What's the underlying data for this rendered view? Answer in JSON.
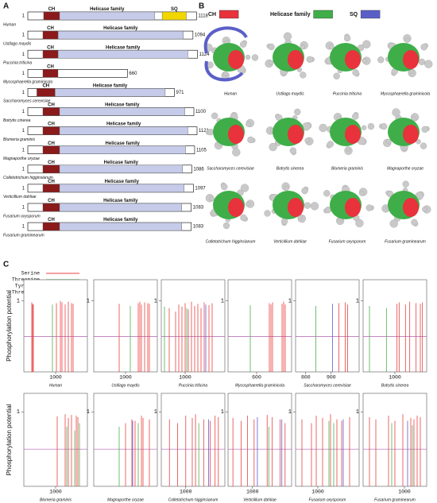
{
  "panel_a": {
    "label": "A",
    "start": 1,
    "ch_label": "CH",
    "helicase_label": "Helicase family",
    "sq_label": "SQ",
    "colors": {
      "ch": "#8b1a1a",
      "helicase": "#c5cbe8",
      "sq": "#f2d600"
    },
    "proteins": [
      {
        "species": "Human",
        "length": 1118,
        "ch": [
          105,
          210
        ],
        "helicase": [
          210,
          840
        ],
        "sq": [
          890,
          1050
        ]
      },
      {
        "species": "Ustilago maydis",
        "length": 1094,
        "ch": [
          100,
          200
        ],
        "helicase": [
          200,
          1030
        ]
      },
      {
        "species": "Puccinia triticina",
        "length": 1124,
        "ch": [
          100,
          200
        ],
        "helicase": [
          200,
          1060
        ]
      },
      {
        "species": "Mycosphaerella graminicola",
        "length": 660,
        "ch": [
          100,
          200
        ]
      },
      {
        "species": "Saccharomyces cerevisiae",
        "length": 971,
        "ch": [
          60,
          180
        ],
        "helicase": [
          180,
          910
        ]
      },
      {
        "species": "Botrytis cinerea",
        "length": 1100,
        "ch": [
          100,
          210
        ],
        "helicase": [
          210,
          1040
        ]
      },
      {
        "species": "Blumeria graminis",
        "length": 1121,
        "ch": [
          100,
          210
        ],
        "helicase": [
          210,
          1060
        ]
      },
      {
        "species": "Magnaporthe oryzae",
        "length": 1105,
        "ch": [
          100,
          210
        ],
        "helicase": [
          210,
          1045
        ]
      },
      {
        "species": "Colletotrichum higginsianum",
        "length": 1086,
        "ch": [
          100,
          210
        ],
        "helicase": [
          210,
          1025
        ]
      },
      {
        "species": "Verticillium dahliae",
        "length": 1097,
        "ch": [
          100,
          210
        ],
        "helicase": [
          210,
          1035
        ]
      },
      {
        "species": "Fusarium oxysporum",
        "length": 1083,
        "ch": [
          100,
          210
        ],
        "helicase": [
          210,
          1020
        ]
      },
      {
        "species": "Fusarium graminearum",
        "length": 1083,
        "ch": [
          100,
          210
        ],
        "helicase": [
          210,
          1020
        ]
      }
    ]
  },
  "panel_b": {
    "label": "B",
    "legend": [
      {
        "name": "CH",
        "color": "#e8323c"
      },
      {
        "name": "Helicase family",
        "color": "#3fae49"
      },
      {
        "name": "SQ",
        "color": "#5a5fc8"
      }
    ],
    "species": [
      "Human",
      "Ustilago maydis",
      "Puccinia triticina",
      "Mycosphaerella graminicola",
      "Saccharomyces cerevisiae",
      "Botrytis cinerea",
      "Blumeria graminis",
      "Magnaporthe oryzae",
      "Colletotrichum higginsianum",
      "Verticillium dahliae",
      "Fusarium oxysporum",
      "Fusarium graminearum"
    ]
  },
  "panel_c": {
    "label": "C",
    "y_label": "Phosphorylation potential",
    "threshold": 0.5,
    "legend": [
      {
        "name": "Serine",
        "color": "#e8413f"
      },
      {
        "name": "Threonine",
        "color": "#4caf50"
      },
      {
        "name": "Tyrosine",
        "color": "#5b5bd6"
      },
      {
        "name": "Threshold",
        "color": "#b05fb0"
      }
    ],
    "plots": [
      {
        "species": "Human",
        "xlim": [
          800,
          1200
        ],
        "xticks": [
          1000
        ],
        "ylim": [
          0,
          1.3
        ],
        "yticks": [
          1
        ],
        "sites": [
          {
            "x": [
              850,
              855,
              860,
              1005,
              1030,
              1040,
              1060,
              1080,
              1100,
              1110
            ],
            "y": [
              0.98,
              0.96,
              0.95,
              0.97,
              1,
              0.98,
              0.95,
              0.99,
              0.97,
              0.96
            ]
          },
          {
            "x": [
              980
            ],
            "y": [
              0.95
            ]
          },
          {
            "x": [],
            "y": []
          }
        ]
      },
      {
        "species": "Ustilago maydis",
        "xlim": [
          800,
          1200
        ],
        "xticks": [
          1000
        ],
        "ylim": [
          0,
          1.3
        ],
        "yticks": [
          1
        ],
        "sites": [
          {
            "x": [
              960,
              1080,
              1090,
              1100,
              1120,
              1140,
              1150
            ],
            "y": [
              0.96,
              0.97,
              0.99,
              0.95,
              0.98,
              0.97,
              0.96
            ]
          },
          {
            "x": [
              1030
            ],
            "y": [
              0.93
            ]
          },
          {
            "x": [],
            "y": []
          }
        ]
      },
      {
        "species": "Puccinia triticina",
        "xlim": [
          850,
          1250
        ],
        "xticks": [
          1000
        ],
        "ylim": [
          0,
          1.3
        ],
        "yticks": [
          1
        ],
        "sites": [
          {
            "x": [
              900,
              940,
              960,
              980,
              1000,
              1020,
              1040,
              1060,
              1080,
              1100,
              1120,
              1150,
              1170
            ],
            "y": [
              0.9,
              0.85,
              0.95,
              0.92,
              0.97,
              0.88,
              0.99,
              0.93,
              0.96,
              0.9,
              0.98,
              0.94,
              0.97
            ]
          },
          {
            "x": [
              870,
              1010
            ],
            "y": [
              0.92,
              0.9
            ]
          },
          {
            "x": [
              1130
            ],
            "y": [
              0.95
            ]
          }
        ]
      },
      {
        "species": "Mycosphaerella graminicola",
        "xlim": [
          420,
          820
        ],
        "xticks": [
          600
        ],
        "ylim": [
          0,
          1.3
        ],
        "yticks": [
          1
        ],
        "sites": [
          {
            "x": [
              680,
              690,
              700,
              760,
              770,
              780
            ],
            "y": [
              0.97,
              0.95,
              0.98,
              0.96,
              0.99,
              0.95
            ]
          },
          {
            "x": [
              560
            ],
            "y": [
              0.94
            ]
          },
          {
            "x": [],
            "y": []
          }
        ]
      },
      {
        "species": "Saccharomyces cerevisiae",
        "xlim": [
          760,
          1010
        ],
        "xticks": [
          800,
          900
        ],
        "ylim": [
          0,
          1.3
        ],
        "yticks": [
          1
        ],
        "sites": [
          {
            "x": [
              930,
              955,
              965
            ],
            "y": [
              0.97,
              0.98,
              0.95
            ]
          },
          {
            "x": [
              840
            ],
            "y": [
              0.93
            ]
          },
          {
            "x": [
              905
            ],
            "y": [
              0.96
            ]
          }
        ]
      },
      {
        "species": "Botrytis cinerea",
        "xlim": [
          850,
          1150
        ],
        "xticks": [
          1000
        ],
        "ylim": [
          0,
          1.3
        ],
        "yticks": [
          1
        ],
        "sites": [
          {
            "x": [
              1010,
              1020,
              1050,
              1070,
              1100,
              1120,
              1130
            ],
            "y": [
              0.96,
              0.98,
              0.95,
              0.99,
              0.97,
              0.96,
              0.98
            ]
          },
          {
            "x": [
              880,
              960
            ],
            "y": [
              0.93,
              0.9
            ]
          },
          {
            "x": [],
            "y": []
          }
        ]
      },
      {
        "species": "Blumeria graminis",
        "xlim": [
          800,
          1200
        ],
        "xticks": [
          1000
        ],
        "ylim": [
          0,
          1.25
        ],
        "yticks": [
          1
        ],
        "sites": [
          {
            "x": [
              1010,
              1060,
              1080,
              1100,
              1130,
              1140
            ],
            "y": [
              0.94,
              0.97,
              0.92,
              0.96,
              0.95,
              0.93
            ]
          },
          {
            "x": [
              1070,
              1120,
              1150
            ],
            "y": [
              0.8,
              0.75,
              0.85
            ]
          },
          {
            "x": [],
            "y": []
          }
        ]
      },
      {
        "species": "Magnaporthe oryzae",
        "xlim": [
          800,
          1200
        ],
        "xticks": [],
        "ylim": [
          0,
          1.25
        ],
        "yticks": [
          1
        ],
        "sites": [
          {
            "x": [
              1000,
              1040,
              1060,
              1100,
              1110,
              1150
            ],
            "y": [
              0.85,
              0.9,
              0.88,
              0.95,
              0.92,
              0.9
            ]
          },
          {
            "x": [
              960,
              1080
            ],
            "y": [
              0.8,
              0.85
            ]
          },
          {
            "x": [
              1045
            ],
            "y": [
              0.88
            ]
          }
        ]
      },
      {
        "species": "Colletotrichum higginsianum",
        "xlim": [
          850,
          1240
        ],
        "xticks": [
          1000
        ],
        "ylim": [
          0,
          1.25
        ],
        "yticks": [
          1
        ],
        "sites": [
          {
            "x": [
              900,
              950,
              1000,
              1040,
              1060,
              1110,
              1150,
              1180,
              1200
            ],
            "y": [
              0.9,
              0.85,
              0.95,
              0.92,
              0.97,
              0.9,
              0.88,
              0.95,
              0.93
            ]
          },
          {
            "x": [
              1080
            ],
            "y": [
              0.85
            ]
          },
          {
            "x": [
              1140
            ],
            "y": [
              0.9
            ]
          }
        ]
      },
      {
        "species": "Verticillium dahliae",
        "xlim": [
          850,
          1240
        ],
        "xticks": [
          1000
        ],
        "ylim": [
          0,
          1.25
        ],
        "yticks": [
          1
        ],
        "sites": [
          {
            "x": [
              880,
              930,
              970,
              1010,
              1090,
              1120,
              1170,
              1200
            ],
            "y": [
              0.92,
              0.88,
              0.95,
              0.9,
              0.96,
              0.93,
              0.9,
              0.85
            ]
          },
          {
            "x": [
              1100
            ],
            "y": [
              0.8
            ]
          },
          {
            "x": [
              1030,
              1180
            ],
            "y": [
              0.93,
              0.9
            ]
          }
        ]
      },
      {
        "species": "Fusarium oxysporum",
        "xlim": [
          860,
          1260
        ],
        "xticks": [
          1000
        ],
        "ylim": [
          0,
          1.25
        ],
        "yticks": [
          1
        ],
        "sites": [
          {
            "x": [
              900,
              960,
              990,
              1030,
              1080,
              1120,
              1150,
              1200
            ],
            "y": [
              0.9,
              0.85,
              0.95,
              0.92,
              0.97,
              0.9,
              0.88,
              0.93
            ]
          },
          {
            "x": [
              1070,
              1100
            ],
            "y": [
              0.88,
              0.85
            ]
          },
          {
            "x": [
              1160
            ],
            "y": [
              0.9
            ]
          }
        ]
      },
      {
        "species": "Fusarium graminearum",
        "xlim": [
          740,
          1140
        ],
        "xticks": [
          1000
        ],
        "ylim": [
          0,
          1.25
        ],
        "yticks": [
          1
        ],
        "sites": [
          {
            "x": [
              780,
              820,
              900,
              940,
              990,
              1040,
              1060,
              1080,
              1100
            ],
            "y": [
              0.93,
              0.9,
              0.95,
              0.88,
              0.97,
              0.92,
              0.9,
              0.95,
              0.93
            ]
          },
          {
            "x": [
              920,
              1050
            ],
            "y": [
              0.85,
              0.82
            ]
          },
          {
            "x": [
              1020
            ],
            "y": [
              0.88
            ]
          }
        ]
      }
    ]
  }
}
